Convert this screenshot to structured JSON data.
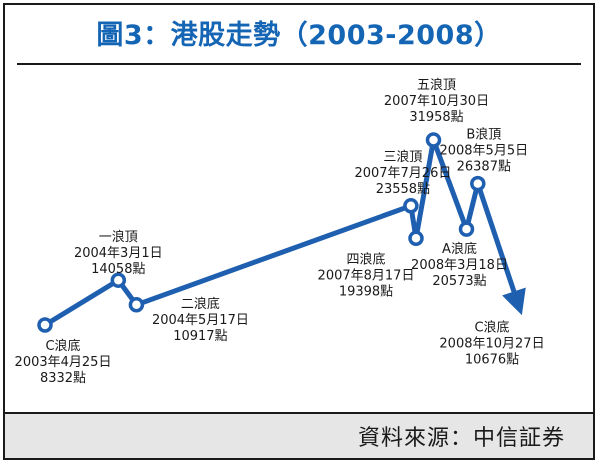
{
  "title": "圖3：港股走勢（2003-2008）",
  "source": "資料來源：中信証券",
  "colors": {
    "line": "#1f5fb0",
    "title": "#1565b5",
    "text": "#1a1a1a",
    "source_bg": "#e6e6e6"
  },
  "chart_data": {
    "type": "line",
    "title": "圖3：港股走勢（2003-2008）",
    "xlabel": "",
    "ylabel": "",
    "x": [
      "2003-04-25",
      "2004-03-01",
      "2004-05-17",
      "2007-07-26",
      "2007-08-17",
      "2007-10-30",
      "2008-03-18",
      "2008-05-05",
      "2008-10-27"
    ],
    "values": [
      8332,
      14058,
      10917,
      23558,
      19398,
      31958,
      20573,
      26387,
      10676
    ],
    "ylim": [
      0,
      34000
    ],
    "grid": false,
    "last_segment_arrow": true,
    "annotations": [
      {
        "name": "C浪底",
        "date": "2003年4月25日",
        "value": "8332點"
      },
      {
        "name": "一浪頂",
        "date": "2004年3月1日",
        "value": "14058點"
      },
      {
        "name": "二浪底",
        "date": "2004年5月17日",
        "value": "10917點"
      },
      {
        "name": "三浪頂",
        "date": "2007年7月26日",
        "value": "23558點"
      },
      {
        "name": "四浪底",
        "date": "2007年8月17日",
        "value": "19398點"
      },
      {
        "name": "五浪頂",
        "date": "2007年10月30日",
        "value": "31958點"
      },
      {
        "name": "A浪底",
        "date": "2008年3月18日",
        "value": "20573點"
      },
      {
        "name": "B浪頂",
        "date": "2008年5月5日",
        "value": "26387點"
      },
      {
        "name": "C浪底",
        "date": "2008年10月27日",
        "value": "10676點"
      }
    ]
  }
}
